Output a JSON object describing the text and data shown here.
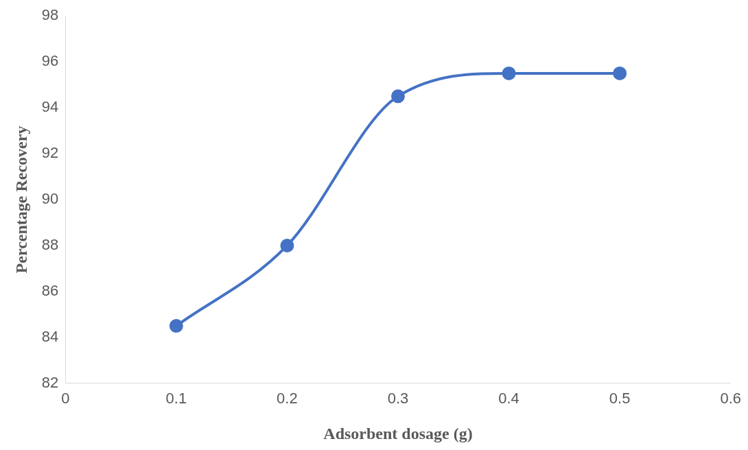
{
  "chart_data": {
    "type": "line",
    "xlabel": "Adsorbent dosage (g)",
    "ylabel": "Percentage Recovery",
    "x": [
      0.1,
      0.2,
      0.3,
      0.4,
      0.5
    ],
    "values": [
      84.5,
      88,
      94.5,
      95.5,
      95.5
    ],
    "color": "#4472c4",
    "marker": "circle",
    "line_style": "solid",
    "grid": false,
    "xlim": [
      0,
      0.6
    ],
    "xticks": [
      0,
      0.1,
      0.2,
      0.3,
      0.4,
      0.5,
      0.6
    ],
    "ylim": [
      82,
      98
    ],
    "yticks": [
      82,
      84,
      86,
      88,
      90,
      92,
      94,
      96,
      98
    ]
  }
}
